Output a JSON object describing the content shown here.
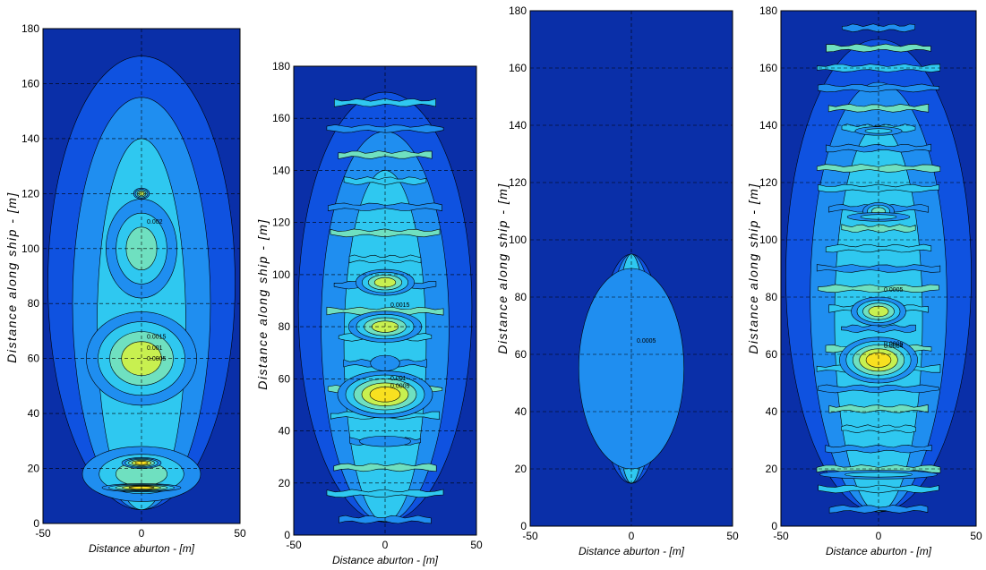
{
  "colors": {
    "background": "#0a2fa8",
    "levels": [
      "#0a2fa8",
      "#0f52e0",
      "#1f8ef0",
      "#2fc8f0",
      "#6fe0c0",
      "#c8f050",
      "#f8e020",
      "#f89010",
      "#e83010",
      "#a00000"
    ],
    "contour_line": "#000000",
    "grid_line": "#000000"
  },
  "chart_data": [
    {
      "type": "heatmap",
      "xlabel": "Distance aburton - [m]",
      "ylabel": "Distance along ship - [m]",
      "xlim": [
        -50,
        50
      ],
      "ylim": [
        0,
        180
      ],
      "x_ticks": [
        "-50",
        "0",
        "50"
      ],
      "y_ticks": [
        "0",
        "20",
        "40",
        "60",
        "80",
        "100",
        "120",
        "140",
        "160",
        "180"
      ],
      "grid": "dashed",
      "contour_labels": [
        "0.0005",
        "0.001",
        "0.0015",
        "0.002"
      ],
      "features": [
        {
          "y": 56,
          "width": 10,
          "height": 14,
          "level": 9
        },
        {
          "y": 58,
          "width": 16,
          "height": 22,
          "level": 7
        },
        {
          "y": 60,
          "width": 28,
          "height": 34,
          "level": 5
        },
        {
          "y": 100,
          "width": 18,
          "height": 36,
          "level": 4
        },
        {
          "y": 18,
          "width": 30,
          "height": 20,
          "level": 4
        },
        {
          "y": 13,
          "width": 20,
          "height": 3,
          "level": 6
        },
        {
          "y": 22,
          "width": 10,
          "height": 4,
          "level": 6
        },
        {
          "y": 120,
          "width": 4,
          "height": 4,
          "level": 5
        }
      ]
    },
    {
      "type": "heatmap",
      "xlabel": "Distance aburton - [m]",
      "ylabel": "Distance along ship - [m]",
      "xlim": [
        -50,
        50
      ],
      "ylim": [
        0,
        180
      ],
      "x_ticks": [
        "-50",
        "0",
        "50"
      ],
      "y_ticks": [
        "0",
        "20",
        "40",
        "60",
        "80",
        "100",
        "120",
        "140",
        "160",
        "180"
      ],
      "grid": "dashed",
      "contour_labels": [
        "0.0005",
        "0.001",
        "0.0015"
      ],
      "features": [
        {
          "y": 53,
          "width": 14,
          "height": 10,
          "level": 9
        },
        {
          "y": 54,
          "width": 26,
          "height": 18,
          "level": 6
        },
        {
          "y": 80,
          "width": 20,
          "height": 12,
          "level": 5
        },
        {
          "y": 97,
          "width": 16,
          "height": 10,
          "level": 5
        },
        {
          "y": 66,
          "width": 8,
          "height": 6,
          "level": 2
        },
        {
          "y": 36,
          "width": 14,
          "height": 4,
          "level": 2
        }
      ]
    },
    {
      "type": "heatmap",
      "xlabel": "Distance aburton - [m]",
      "ylabel": "Distance along ship - [m]",
      "xlim": [
        -50,
        50
      ],
      "ylim": [
        0,
        180
      ],
      "x_ticks": [
        "-50",
        "0",
        "50"
      ],
      "y_ticks": [
        "0",
        "20",
        "40",
        "60",
        "80",
        "100",
        "120",
        "140",
        "160",
        "180"
      ],
      "grid": "dashed",
      "contour_labels": [
        "0.0005"
      ],
      "features": [
        {
          "y": 61,
          "width": 8,
          "height": 12,
          "level": 9
        },
        {
          "y": 61,
          "width": 14,
          "height": 18,
          "level": 6
        },
        {
          "y": 44,
          "width": 6,
          "height": 8,
          "level": 5
        },
        {
          "y": 55,
          "width": 26,
          "height": 70,
          "level": 2
        }
      ]
    },
    {
      "type": "heatmap",
      "xlabel": "Distance aburton - [m]",
      "ylabel": "Distance along ship - [m]",
      "xlim": [
        -50,
        50
      ],
      "ylim": [
        0,
        180
      ],
      "x_ticks": [
        "-50",
        "0",
        "50"
      ],
      "y_ticks": [
        "0",
        "20",
        "40",
        "60",
        "80",
        "100",
        "120",
        "140",
        "160",
        "180"
      ],
      "grid": "dashed",
      "contour_labels": [
        "0.0004",
        "0.0006",
        "0.0005"
      ],
      "features": [
        {
          "y": 59,
          "width": 10,
          "height": 8,
          "level": 9
        },
        {
          "y": 58,
          "width": 20,
          "height": 16,
          "level": 6
        },
        {
          "y": 75,
          "width": 14,
          "height": 10,
          "level": 5
        },
        {
          "y": 110,
          "width": 8,
          "height": 6,
          "level": 4
        },
        {
          "y": 108,
          "width": 16,
          "height": 3,
          "level": 3
        },
        {
          "y": 18,
          "width": 30,
          "height": 3,
          "level": 3
        },
        {
          "y": 138,
          "width": 12,
          "height": 3,
          "level": 3
        }
      ]
    }
  ]
}
